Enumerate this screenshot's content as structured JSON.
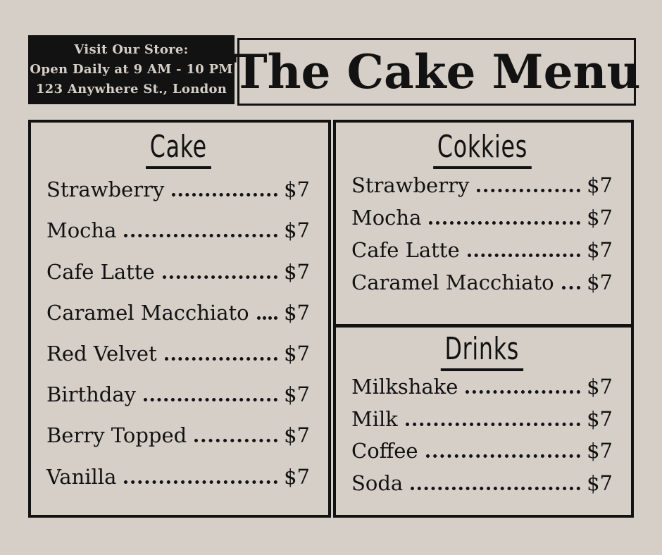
{
  "page": {
    "background_color": "#d6cfc7",
    "ink_color": "#121212"
  },
  "header": {
    "store_info": {
      "line1": "Visit Our Store:",
      "line2": "Open Daily at 9 AM - 10 PM",
      "line3": "123 Anywhere St., London"
    },
    "title": "The Cake Menu"
  },
  "menu": {
    "sections": [
      {
        "title": "Cake",
        "items": [
          {
            "name": "Strawberry",
            "price": "$7"
          },
          {
            "name": "Mocha",
            "price": "$7"
          },
          {
            "name": "Cafe Latte",
            "price": "$7"
          },
          {
            "name": "Caramel Macchiato",
            "price": "$7"
          },
          {
            "name": "Red Velvet",
            "price": "$7"
          },
          {
            "name": "Birthday",
            "price": "$7"
          },
          {
            "name": "Berry Topped",
            "price": "$7"
          },
          {
            "name": "Vanilla",
            "price": "$7"
          }
        ]
      },
      {
        "title": "Cokkies",
        "items": [
          {
            "name": "Strawberry",
            "price": "$7"
          },
          {
            "name": "Mocha",
            "price": "$7"
          },
          {
            "name": "Cafe Latte",
            "price": "$7"
          },
          {
            "name": "Caramel Macchiato",
            "price": "$7"
          }
        ]
      },
      {
        "title": "Drinks",
        "items": [
          {
            "name": "Milkshake",
            "price": "$7"
          },
          {
            "name": "Milk",
            "price": "$7"
          },
          {
            "name": "Coffee",
            "price": "$7"
          },
          {
            "name": "Soda",
            "price": "$7"
          }
        ]
      }
    ]
  }
}
